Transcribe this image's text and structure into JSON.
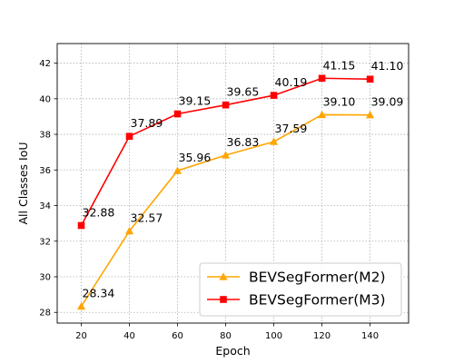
{
  "chart_data": {
    "type": "line",
    "title": "",
    "xlabel": "Epoch",
    "ylabel": "All Classes IoU",
    "xlim": [
      10,
      156
    ],
    "ylim": [
      27.4,
      43.1
    ],
    "xticks": [
      20,
      40,
      60,
      80,
      100,
      120,
      140
    ],
    "yticks": [
      28,
      30,
      32,
      34,
      36,
      38,
      40,
      42
    ],
    "grid": true,
    "legend_position": "bottom-right",
    "x": [
      20,
      40,
      60,
      80,
      100,
      120,
      140
    ],
    "series": [
      {
        "name": "BEVSegFormer(M2)",
        "values": [
          28.34,
          32.57,
          35.96,
          36.83,
          37.59,
          39.1,
          39.09
        ],
        "labels": [
          "28.34",
          "32.57",
          "35.96",
          "36.83",
          "37.59",
          "39.10",
          "39.09"
        ],
        "color": "#ffa500",
        "marker": "triangle"
      },
      {
        "name": "BEVSegFormer(M3)",
        "values": [
          32.88,
          37.89,
          39.15,
          39.65,
          40.19,
          41.15,
          41.1
        ],
        "labels": [
          "32.88",
          "37.89",
          "39.15",
          "39.65",
          "40.19",
          "41.15",
          "41.10"
        ],
        "color": "#ff0000",
        "marker": "square"
      }
    ]
  }
}
